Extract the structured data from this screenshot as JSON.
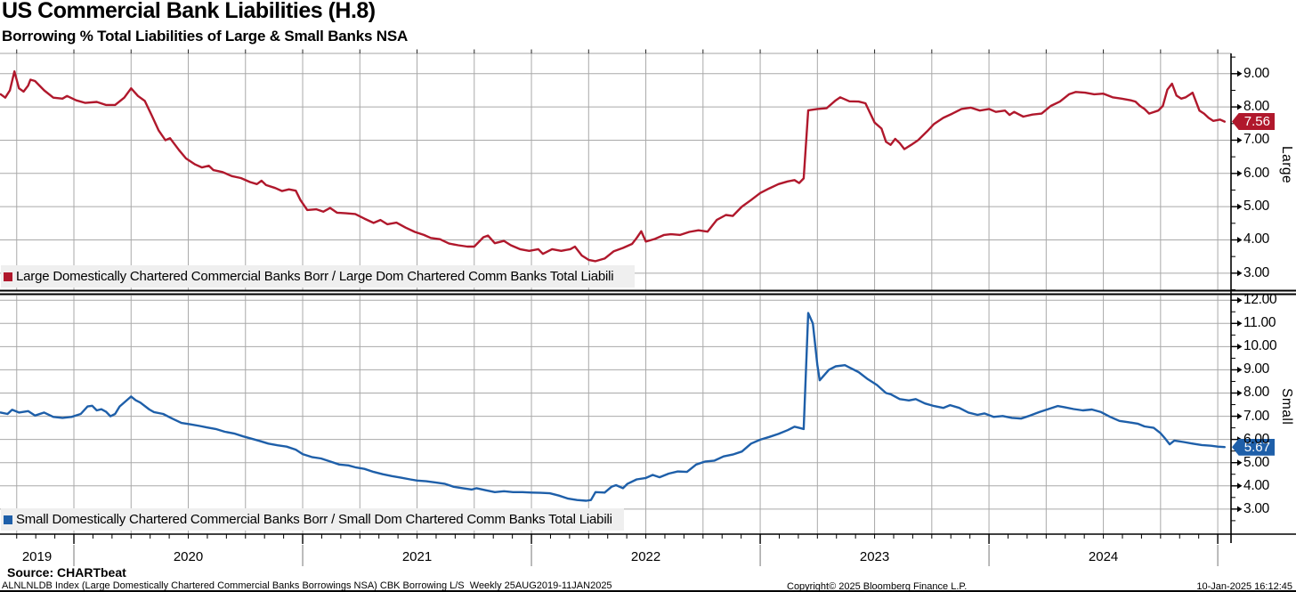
{
  "header": {
    "title": "US Commercial Bank Liabilities (H.8)",
    "subtitle": "Borrowing % Total Liabilities of Large & Small Banks NSA"
  },
  "footer": {
    "source": "Source: CHARTbeat",
    "description": "ALNLNLDB Index (Large Domestically Chartered Commercial Banks Borrowings NSA) CBK Borrowing L/S  Weekly 25AUG2019-11JAN2025",
    "copyright": "Copyright© 2025 Bloomberg Finance L.P.",
    "datetime": "10-Jan-2025 16:12:45"
  },
  "colors": {
    "large_line": "#b0182c",
    "small_line": "#1e5fa9",
    "grid": "#a9a9a9",
    "axis": "#000000",
    "legend_bg": "#efefef",
    "badge_text": "#ffffff"
  },
  "x_axis": {
    "xlim": [
      2019.677,
      2025.058
    ],
    "year_labels": [
      "2019",
      "2020",
      "2021",
      "2022",
      "2023",
      "2024"
    ],
    "year_boundaries": [
      2020,
      2021,
      2022,
      2023,
      2024,
      2025
    ]
  },
  "chart_data": [
    {
      "type": "line",
      "panel_label": "Large",
      "series_name": "Large Domestically Chartered Commercial Banks Borr / Large Dom Chartered Comm Banks Total Liabili",
      "color": "#b0182c",
      "last_value_label": "7.56",
      "last_value": 7.56,
      "ylim": [
        2.46,
        9.61
      ],
      "yticks": [
        3,
        4,
        5,
        6,
        7,
        8,
        9
      ],
      "x": [
        2019.68,
        2019.7,
        2019.72,
        2019.74,
        2019.76,
        2019.78,
        2019.8,
        2019.81,
        2019.83,
        2019.87,
        2019.91,
        2019.95,
        2019.97,
        2020.01,
        2020.05,
        2020.1,
        2020.14,
        2020.18,
        2020.22,
        2020.25,
        2020.28,
        2020.31,
        2020.34,
        2020.37,
        2020.4,
        2020.42,
        2020.46,
        2020.49,
        2020.53,
        2020.56,
        2020.59,
        2020.61,
        2020.65,
        2020.69,
        2020.73,
        2020.77,
        2020.8,
        2020.82,
        2020.84,
        2020.88,
        2020.91,
        2020.94,
        2020.97,
        2020.99,
        2021.02,
        2021.06,
        2021.09,
        2021.12,
        2021.15,
        2021.19,
        2021.23,
        2021.27,
        2021.31,
        2021.34,
        2021.37,
        2021.41,
        2021.45,
        2021.49,
        2021.53,
        2021.56,
        2021.6,
        2021.64,
        2021.68,
        2021.72,
        2021.75,
        2021.79,
        2021.81,
        2021.84,
        2021.88,
        2021.91,
        2021.95,
        2021.99,
        2022.03,
        2022.05,
        2022.09,
        2022.13,
        2022.17,
        2022.19,
        2022.22,
        2022.25,
        2022.28,
        2022.32,
        2022.36,
        2022.4,
        2022.44,
        2022.46,
        2022.48,
        2022.5,
        2022.54,
        2022.58,
        2022.61,
        2022.65,
        2022.69,
        2022.73,
        2022.77,
        2022.81,
        2022.85,
        2022.88,
        2022.92,
        2022.96,
        2023.0,
        2023.04,
        2023.08,
        2023.12,
        2023.15,
        2023.17,
        2023.19,
        2023.21,
        2023.25,
        2023.29,
        2023.33,
        2023.35,
        2023.39,
        2023.43,
        2023.46,
        2023.5,
        2023.53,
        2023.55,
        2023.57,
        2023.59,
        2023.61,
        2023.63,
        2023.66,
        2023.69,
        2023.73,
        2023.76,
        2023.8,
        2023.84,
        2023.88,
        2023.92,
        2023.96,
        2024.0,
        2024.03,
        2024.07,
        2024.09,
        2024.11,
        2024.15,
        2024.19,
        2024.23,
        2024.27,
        2024.31,
        2024.35,
        2024.38,
        2024.42,
        2024.46,
        2024.5,
        2024.54,
        2024.58,
        2024.62,
        2024.64,
        2024.66,
        2024.68,
        2024.7,
        2024.74,
        2024.76,
        2024.78,
        2024.8,
        2024.82,
        2024.84,
        2024.86,
        2024.88,
        2024.89,
        2024.92,
        2024.94,
        2024.96,
        2024.98,
        2025.01,
        2025.03
      ],
      "values": [
        8.38,
        8.28,
        8.5,
        9.07,
        8.56,
        8.46,
        8.64,
        8.82,
        8.78,
        8.5,
        8.28,
        8.25,
        8.33,
        8.2,
        8.12,
        8.15,
        8.06,
        8.06,
        8.28,
        8.56,
        8.33,
        8.18,
        7.75,
        7.3,
        7.0,
        7.06,
        6.7,
        6.45,
        6.27,
        6.18,
        6.23,
        6.1,
        6.04,
        5.92,
        5.86,
        5.74,
        5.68,
        5.78,
        5.65,
        5.56,
        5.47,
        5.52,
        5.48,
        5.2,
        4.9,
        4.92,
        4.85,
        4.96,
        4.82,
        4.8,
        4.78,
        4.64,
        4.51,
        4.6,
        4.47,
        4.52,
        4.37,
        4.24,
        4.15,
        4.06,
        4.02,
        3.89,
        3.84,
        3.8,
        3.8,
        4.08,
        4.13,
        3.9,
        3.97,
        3.84,
        3.72,
        3.67,
        3.72,
        3.58,
        3.72,
        3.67,
        3.72,
        3.8,
        3.53,
        3.4,
        3.36,
        3.44,
        3.66,
        3.76,
        3.88,
        4.06,
        4.26,
        3.95,
        4.03,
        4.15,
        4.17,
        4.15,
        4.24,
        4.29,
        4.25,
        4.6,
        4.75,
        4.72,
        5.0,
        5.2,
        5.41,
        5.55,
        5.68,
        5.76,
        5.8,
        5.71,
        5.85,
        7.9,
        7.94,
        7.96,
        8.2,
        8.29,
        8.17,
        8.16,
        8.11,
        7.53,
        7.35,
        6.95,
        6.86,
        7.04,
        6.91,
        6.73,
        6.86,
        7.0,
        7.27,
        7.49,
        7.67,
        7.8,
        7.94,
        7.98,
        7.89,
        7.94,
        7.85,
        7.89,
        7.76,
        7.85,
        7.71,
        7.77,
        7.8,
        8.03,
        8.16,
        8.38,
        8.45,
        8.43,
        8.38,
        8.4,
        8.29,
        8.25,
        8.2,
        8.16,
        8.03,
        7.94,
        7.8,
        7.89,
        8.03,
        8.52,
        8.7,
        8.34,
        8.25,
        8.29,
        8.38,
        8.43,
        7.89,
        7.8,
        7.67,
        7.58,
        7.62,
        7.56
      ]
    },
    {
      "type": "line",
      "panel_label": "Small",
      "series_name": "Small Domestically Chartered Commercial Banks Borr / Small Dom Chartered Comm Banks Total Liabili",
      "color": "#1e5fa9",
      "last_value_label": "5.67",
      "last_value": 5.67,
      "ylim": [
        1.92,
        12.2
      ],
      "yticks": [
        3,
        4,
        5,
        6,
        7,
        8,
        9,
        10,
        11,
        12
      ],
      "x": [
        2019.68,
        2019.71,
        2019.73,
        2019.76,
        2019.8,
        2019.83,
        2019.87,
        2019.91,
        2019.95,
        2019.99,
        2020.03,
        2020.06,
        2020.08,
        2020.1,
        2020.12,
        2020.14,
        2020.16,
        2020.18,
        2020.2,
        2020.25,
        2020.27,
        2020.29,
        2020.33,
        2020.35,
        2020.39,
        2020.43,
        2020.47,
        2020.51,
        2020.55,
        2020.58,
        2020.62,
        2020.66,
        2020.7,
        2020.74,
        2020.77,
        2020.81,
        2020.85,
        2020.89,
        2020.93,
        2020.97,
        2021.0,
        2021.04,
        2021.08,
        2021.12,
        2021.16,
        2021.2,
        2021.23,
        2021.27,
        2021.31,
        2021.35,
        2021.39,
        2021.43,
        2021.47,
        2021.5,
        2021.54,
        2021.58,
        2021.62,
        2021.66,
        2021.7,
        2021.74,
        2021.76,
        2021.8,
        2021.84,
        2021.88,
        2021.92,
        2021.96,
        2022.0,
        2022.04,
        2022.08,
        2022.12,
        2022.16,
        2022.2,
        2022.24,
        2022.26,
        2022.28,
        2022.32,
        2022.35,
        2022.37,
        2022.4,
        2022.42,
        2022.46,
        2022.5,
        2022.53,
        2022.56,
        2022.6,
        2022.64,
        2022.68,
        2022.72,
        2022.76,
        2022.8,
        2022.84,
        2022.88,
        2022.92,
        2022.96,
        2023.0,
        2023.04,
        2023.08,
        2023.12,
        2023.15,
        2023.17,
        2023.19,
        2023.21,
        2023.23,
        2023.25,
        2023.26,
        2023.3,
        2023.33,
        2023.37,
        2023.39,
        2023.43,
        2023.47,
        2023.51,
        2023.55,
        2023.57,
        2023.61,
        2023.65,
        2023.68,
        2023.72,
        2023.76,
        2023.8,
        2023.83,
        2023.87,
        2023.91,
        2023.95,
        2023.98,
        2024.02,
        2024.06,
        2024.1,
        2024.14,
        2024.18,
        2024.22,
        2024.26,
        2024.3,
        2024.33,
        2024.37,
        2024.41,
        2024.45,
        2024.49,
        2024.53,
        2024.57,
        2024.61,
        2024.65,
        2024.68,
        2024.72,
        2024.75,
        2024.77,
        2024.79,
        2024.81,
        2024.85,
        2024.89,
        2024.93,
        2024.97,
        2025.0,
        2025.03
      ],
      "values": [
        7.16,
        7.1,
        7.28,
        7.16,
        7.22,
        7.03,
        7.16,
        6.97,
        6.93,
        6.97,
        7.1,
        7.42,
        7.45,
        7.25,
        7.3,
        7.2,
        7.0,
        7.1,
        7.42,
        7.85,
        7.69,
        7.59,
        7.29,
        7.18,
        7.1,
        6.9,
        6.71,
        6.65,
        6.58,
        6.52,
        6.45,
        6.33,
        6.26,
        6.13,
        6.05,
        5.94,
        5.82,
        5.75,
        5.69,
        5.56,
        5.37,
        5.24,
        5.18,
        5.05,
        4.92,
        4.88,
        4.8,
        4.73,
        4.6,
        4.5,
        4.42,
        4.35,
        4.28,
        4.23,
        4.2,
        4.15,
        4.09,
        3.96,
        3.9,
        3.84,
        3.9,
        3.81,
        3.73,
        3.77,
        3.73,
        3.73,
        3.71,
        3.7,
        3.68,
        3.58,
        3.45,
        3.39,
        3.36,
        3.39,
        3.73,
        3.71,
        3.96,
        4.03,
        3.9,
        4.09,
        4.28,
        4.34,
        4.47,
        4.37,
        4.53,
        4.62,
        4.6,
        4.92,
        5.05,
        5.09,
        5.27,
        5.35,
        5.48,
        5.82,
        5.99,
        6.11,
        6.24,
        6.4,
        6.55,
        6.5,
        6.45,
        11.45,
        11.0,
        9.2,
        8.55,
        9.0,
        9.15,
        9.2,
        9.1,
        8.9,
        8.6,
        8.35,
        8.0,
        7.95,
        7.74,
        7.68,
        7.74,
        7.55,
        7.44,
        7.36,
        7.48,
        7.36,
        7.16,
        7.06,
        7.12,
        6.97,
        7.01,
        6.93,
        6.9,
        7.03,
        7.18,
        7.31,
        7.44,
        7.39,
        7.31,
        7.25,
        7.29,
        7.18,
        6.97,
        6.8,
        6.74,
        6.68,
        6.56,
        6.5,
        6.27,
        6.04,
        5.79,
        5.95,
        5.89,
        5.82,
        5.76,
        5.73,
        5.69,
        5.67
      ]
    }
  ]
}
